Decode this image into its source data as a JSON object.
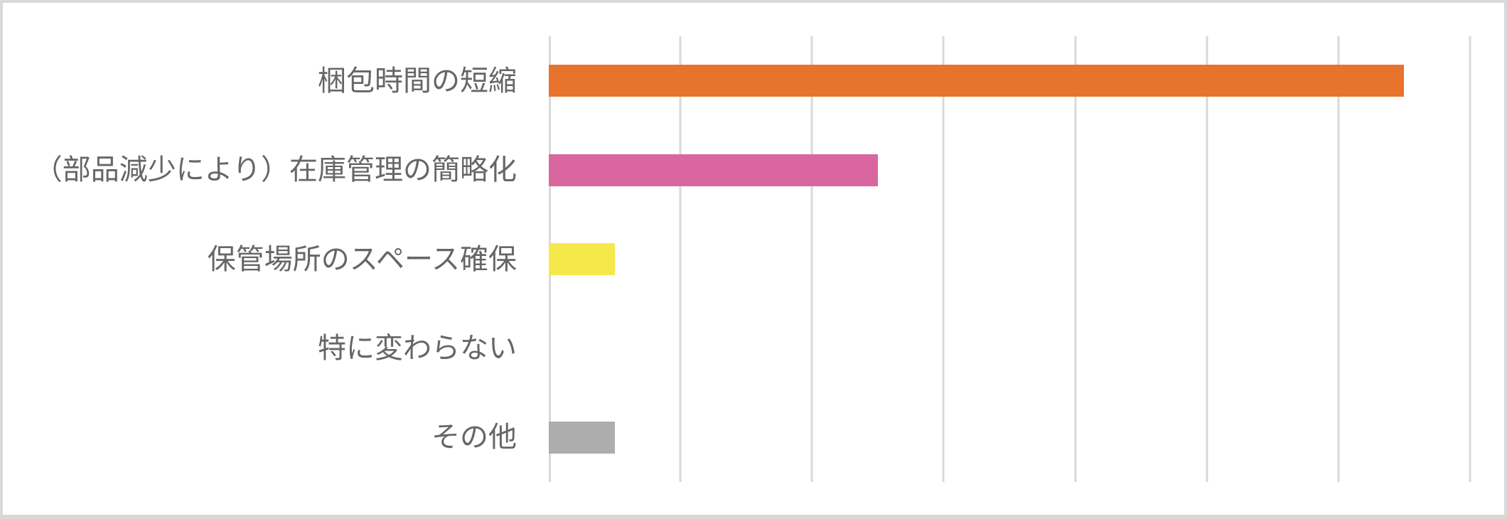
{
  "chart_data": {
    "type": "bar",
    "orientation": "horizontal",
    "title": "",
    "categories": [
      "梱包時間の短縮",
      "（部品減少により）在庫管理の簡略化",
      "保管場所のスペース確保",
      "特に変わらない",
      "その他"
    ],
    "values": [
      13,
      5,
      1,
      0,
      1
    ],
    "bar_colors": [
      "#E8732D",
      "#D9669F",
      "#F5E84A",
      null,
      "#ADADAD"
    ],
    "x_axis": {
      "min": 0,
      "max": 14,
      "gridline_interval": 2,
      "tick_labels_visible": false
    },
    "y_axis": {
      "tick_labels_visible": true
    },
    "grid": true,
    "legend": "none",
    "data_labels": "none"
  },
  "theme": {
    "background": "#FFFFFF",
    "border": "#D9D9D9",
    "gridline": "#D9D9D9",
    "label": "#666666"
  }
}
